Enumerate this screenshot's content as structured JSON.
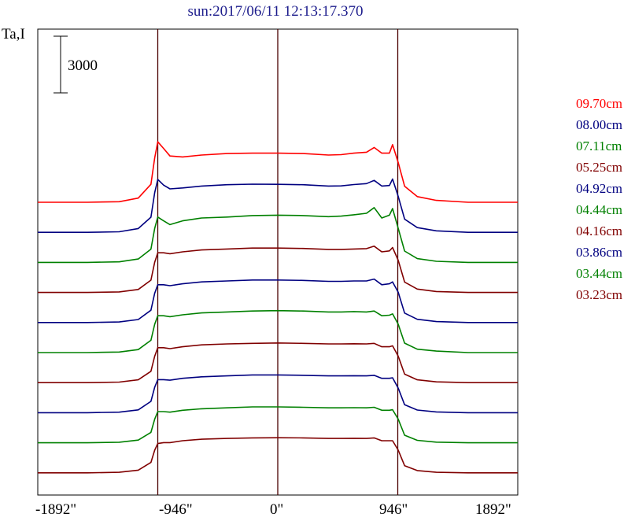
{
  "title": "sun:2017/06/11 12:13:17.370",
  "ylabel": "Ta,I",
  "scale_bar_label": "3000",
  "chart_data": {
    "type": "line",
    "title": "sun:2017/06/11 12:13:17.370",
    "ylabel": "Ta,I",
    "xlabel": "",
    "x_ticks": [
      "-1892\"",
      "-946\"",
      "0\"",
      "946\"",
      "1892\""
    ],
    "xlim": [
      -1892,
      1892
    ],
    "vertical_lines": [
      -946,
      0,
      946
    ],
    "scale_bar": 3000,
    "stacked_offsets": true,
    "series": [
      {
        "name": "09.70cm",
        "color": "#ff0000",
        "baseline": 0,
        "x": [
          -1892,
          -1500,
          -1250,
          -1100,
          -1000,
          -970,
          -946,
          -900,
          -850,
          -750,
          -600,
          -400,
          -200,
          0,
          200,
          400,
          500,
          600,
          700,
          760,
          820,
          880,
          905,
          950,
          1000,
          1100,
          1250,
          1500,
          1892
        ],
        "y": [
          0,
          0,
          30,
          220,
          950,
          2350,
          3200,
          2850,
          2450,
          2400,
          2500,
          2580,
          2600,
          2600,
          2580,
          2500,
          2520,
          2600,
          2650,
          2900,
          2600,
          2600,
          3050,
          2100,
          850,
          300,
          100,
          0,
          0
        ]
      },
      {
        "name": "08.00cm",
        "color": "#000080",
        "baseline": 0,
        "x": [
          -1892,
          -1500,
          -1250,
          -1100,
          -1000,
          -970,
          -946,
          -900,
          -850,
          -750,
          -600,
          -400,
          -200,
          0,
          200,
          400,
          500,
          600,
          700,
          760,
          820,
          880,
          905,
          950,
          1000,
          1100,
          1250,
          1500,
          1892
        ],
        "y": [
          0,
          0,
          30,
          200,
          800,
          2100,
          2800,
          2500,
          2300,
          2350,
          2450,
          2520,
          2550,
          2540,
          2520,
          2450,
          2460,
          2530,
          2580,
          2750,
          2450,
          2480,
          2820,
          1900,
          700,
          250,
          80,
          0,
          0
        ]
      },
      {
        "name": "07.11cm",
        "color": "#008000",
        "baseline": 0,
        "x": [
          -1892,
          -1500,
          -1250,
          -1100,
          -1000,
          -970,
          -946,
          -900,
          -850,
          -750,
          -600,
          -400,
          -200,
          0,
          200,
          400,
          500,
          600,
          700,
          760,
          820,
          880,
          905,
          950,
          1000,
          1100,
          1250,
          1500,
          1892
        ],
        "y": [
          0,
          0,
          30,
          180,
          700,
          1800,
          2400,
          2200,
          2000,
          2200,
          2350,
          2400,
          2480,
          2500,
          2480,
          2420,
          2450,
          2520,
          2600,
          2900,
          2350,
          2500,
          2850,
          1800,
          600,
          200,
          60,
          0,
          0
        ]
      },
      {
        "name": "05.25cm",
        "color": "#800000",
        "baseline": 0,
        "x": [
          -1892,
          -1500,
          -1250,
          -1100,
          -1000,
          -970,
          -946,
          -900,
          -850,
          -750,
          -600,
          -400,
          -200,
          0,
          200,
          400,
          500,
          600,
          700,
          760,
          820,
          880,
          905,
          950,
          1000,
          1100,
          1250,
          1500,
          1892
        ],
        "y": [
          0,
          0,
          30,
          160,
          650,
          1600,
          2100,
          2100,
          2050,
          2150,
          2250,
          2300,
          2350,
          2350,
          2330,
          2280,
          2280,
          2300,
          2320,
          2450,
          2150,
          2200,
          2380,
          1700,
          550,
          180,
          50,
          0,
          0
        ]
      },
      {
        "name": "04.92cm",
        "color": "#000080",
        "baseline": 0,
        "x": [
          -1892,
          -1500,
          -1250,
          -1100,
          -1000,
          -970,
          -946,
          -900,
          -850,
          -750,
          -600,
          -400,
          -200,
          0,
          200,
          400,
          500,
          600,
          700,
          760,
          820,
          880,
          905,
          950,
          1000,
          1100,
          1250,
          1500,
          1892
        ],
        "y": [
          0,
          0,
          30,
          160,
          650,
          1550,
          2000,
          2000,
          1950,
          2050,
          2150,
          2200,
          2250,
          2250,
          2230,
          2180,
          2180,
          2200,
          2200,
          2300,
          2000,
          2050,
          2150,
          1600,
          500,
          170,
          50,
          0,
          0
        ]
      },
      {
        "name": "04.44cm",
        "color": "#008000",
        "baseline": 0,
        "x": [
          -1892,
          -1500,
          -1250,
          -1100,
          -1000,
          -970,
          -946,
          -900,
          -850,
          -750,
          -600,
          -400,
          -200,
          0,
          200,
          400,
          500,
          600,
          700,
          760,
          820,
          880,
          905,
          950,
          1000,
          1100,
          1250,
          1500,
          1892
        ],
        "y": [
          0,
          0,
          30,
          160,
          650,
          1500,
          1950,
          1950,
          1900,
          2000,
          2100,
          2150,
          2200,
          2220,
          2200,
          2150,
          2150,
          2170,
          2150,
          2200,
          1950,
          1980,
          2050,
          1500,
          500,
          180,
          80,
          0,
          0
        ]
      },
      {
        "name": "04.16cm",
        "color": "#800000",
        "baseline": 0,
        "x": [
          -1892,
          -1500,
          -1250,
          -1100,
          -1000,
          -970,
          -946,
          -900,
          -850,
          -750,
          -600,
          -400,
          -200,
          0,
          200,
          400,
          500,
          600,
          700,
          760,
          820,
          880,
          905,
          950,
          1000,
          1100,
          1250,
          1500,
          1892
        ],
        "y": [
          0,
          0,
          30,
          150,
          600,
          1400,
          1850,
          1850,
          1800,
          1900,
          2000,
          2050,
          2080,
          2100,
          2080,
          2050,
          2050,
          2060,
          2050,
          2080,
          1900,
          1900,
          1950,
          1400,
          450,
          150,
          40,
          0,
          0
        ]
      },
      {
        "name": "03.86cm",
        "color": "#000080",
        "baseline": 0,
        "x": [
          -1892,
          -1500,
          -1250,
          -1100,
          -1000,
          -970,
          -946,
          -900,
          -850,
          -750,
          -600,
          -400,
          -200,
          0,
          200,
          400,
          500,
          600,
          700,
          760,
          820,
          880,
          905,
          950,
          1000,
          1100,
          1250,
          1500,
          1892
        ],
        "y": [
          0,
          0,
          30,
          150,
          600,
          1350,
          1750,
          1750,
          1720,
          1820,
          1900,
          1950,
          2000,
          2000,
          1980,
          1950,
          1950,
          1960,
          1950,
          1980,
          1820,
          1820,
          1850,
          1300,
          420,
          140,
          40,
          0,
          0
        ]
      },
      {
        "name": "03.44cm",
        "color": "#008000",
        "baseline": 0,
        "x": [
          -1892,
          -1500,
          -1250,
          -1100,
          -1000,
          -970,
          -946,
          -900,
          -850,
          -750,
          -600,
          -400,
          -200,
          0,
          200,
          400,
          500,
          600,
          700,
          760,
          820,
          880,
          905,
          950,
          1000,
          1100,
          1250,
          1500,
          1892
        ],
        "y": [
          0,
          0,
          30,
          140,
          550,
          1250,
          1650,
          1650,
          1620,
          1720,
          1800,
          1850,
          1900,
          1900,
          1880,
          1850,
          1850,
          1860,
          1850,
          1880,
          1720,
          1720,
          1750,
          1250,
          400,
          130,
          35,
          0,
          0
        ]
      },
      {
        "name": "03.23cm",
        "color": "#800000",
        "baseline": 0,
        "x": [
          -1892,
          -1500,
          -1250,
          -1100,
          -1000,
          -970,
          -946,
          -900,
          -850,
          -750,
          -600,
          -400,
          -200,
          0,
          200,
          400,
          500,
          600,
          700,
          760,
          820,
          880,
          905,
          950,
          1000,
          1100,
          1250,
          1500,
          1892
        ],
        "y": [
          0,
          0,
          30,
          140,
          550,
          1200,
          1550,
          1600,
          1600,
          1700,
          1780,
          1820,
          1850,
          1860,
          1850,
          1820,
          1820,
          1830,
          1820,
          1850,
          1700,
          1700,
          1700,
          1200,
          380,
          120,
          30,
          0,
          0
        ]
      }
    ]
  }
}
